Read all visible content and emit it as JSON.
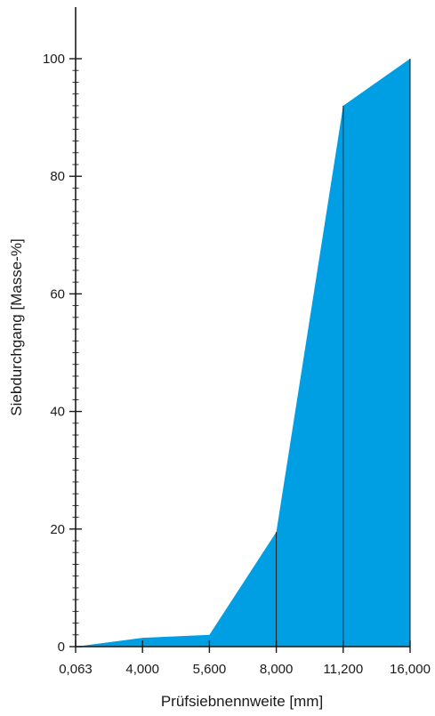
{
  "chart_data": {
    "type": "area",
    "title": "",
    "xlabel": "Prüfsiebnennweite [mm]",
    "ylabel": "Siebdurchgang [Masse-%]",
    "x_scale": "categorical-evenly-spaced",
    "categories": [
      "0,063",
      "4,000",
      "5,600",
      "8,000",
      "11,200",
      "16,000"
    ],
    "series": [
      {
        "values": [
          0,
          1.5,
          2,
          19.5,
          92,
          100
        ],
        "color": "#009fe3"
      }
    ],
    "y_ticks": [
      "0",
      "20",
      "40",
      "60",
      "80",
      "100"
    ],
    "ylim": [
      0,
      100
    ],
    "grid": false,
    "legend": "none"
  }
}
